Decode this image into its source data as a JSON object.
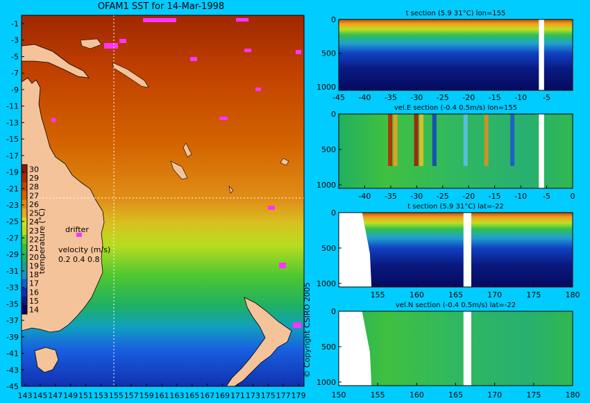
{
  "colors": {
    "background": "#00CCFF",
    "land": "#F5C39A",
    "drifter": "#FF33FF"
  },
  "map": {
    "title": "OFAM1 SST for 14-Mar-1998",
    "x_ticks": [
      "143",
      "145",
      "147",
      "149",
      "151",
      "153",
      "155",
      "157",
      "159",
      "161",
      "163",
      "165",
      "167",
      "169",
      "171",
      "173",
      "175",
      "177",
      "179"
    ],
    "y_ticks": [
      "-1",
      "-3",
      "-5",
      "-7",
      "-9",
      "-11",
      "-13",
      "-15",
      "-17",
      "-19",
      "-21",
      "-23",
      "-25",
      "-27",
      "-29",
      "-31",
      "-33",
      "-35",
      "-37",
      "-39",
      "-41",
      "-43",
      "-45"
    ],
    "colorbar": {
      "label": "temperature (°C)",
      "ticks": [
        "30",
        "29",
        "28",
        "27",
        "26",
        "25",
        "24",
        "23",
        "22",
        "21",
        "20",
        "19",
        "18",
        "17",
        "16",
        "15",
        "14"
      ],
      "colors": [
        "#8B1A00",
        "#A52A00",
        "#C24400",
        "#D66000",
        "#E08A10",
        "#E8A820",
        "#D8D820",
        "#B0E020",
        "#60D030",
        "#30C040",
        "#20B060",
        "#20A080",
        "#2090C0",
        "#1060D0",
        "#1030B0",
        "#101880",
        "#000060"
      ]
    },
    "legend_drifter": "drifter",
    "legend_velocity": "velocity (m/s)",
    "legend_velocity_scale": "0.2 0.4 0.8",
    "copyright": "© Copyright CSIRO 2005"
  },
  "chart_data": [
    {
      "type": "heatmap",
      "title": "t section (5.9     31°C) lon=155",
      "x_ticks": [
        "-45",
        "-40",
        "-35",
        "-30",
        "-25",
        "-20",
        "-15",
        "-10",
        "-5"
      ],
      "y_ticks": [
        "0",
        "500",
        "1000"
      ],
      "xlim": [
        -45,
        0
      ],
      "ylim": [
        1050,
        0
      ],
      "gap_x": [
        -6.5,
        -5.5
      ]
    },
    {
      "type": "heatmap",
      "title": "vel.E section (-0.4     0.5m/s) lon=155",
      "x_ticks": [
        "-40",
        "-35",
        "-30",
        "-25",
        "-20",
        "-15",
        "-10",
        "-5",
        "0"
      ],
      "y_ticks": [
        "0",
        "500",
        "1000"
      ],
      "xlim": [
        -45,
        0
      ],
      "ylim": [
        1050,
        0
      ],
      "gap_x": [
        -6.5,
        -5.5
      ]
    },
    {
      "type": "heatmap",
      "title": "t section (5.9     31°C) lat=-22",
      "x_ticks": [
        "155",
        "160",
        "165",
        "170",
        "175",
        "180"
      ],
      "y_ticks": [
        "0",
        "500",
        "1000"
      ],
      "xlim": [
        150,
        180
      ],
      "ylim": [
        1050,
        0
      ],
      "gap_x": [
        166,
        167
      ]
    },
    {
      "type": "heatmap",
      "title": "vel.N section (-0.4     0.5m/s) lat=-22",
      "x_ticks": [
        "150",
        "155",
        "160",
        "165",
        "170",
        "175",
        "180"
      ],
      "y_ticks": [
        "0",
        "500",
        "1000"
      ],
      "xlim": [
        150,
        180
      ],
      "ylim": [
        1050,
        0
      ],
      "gap_x": [
        166,
        167
      ]
    }
  ]
}
